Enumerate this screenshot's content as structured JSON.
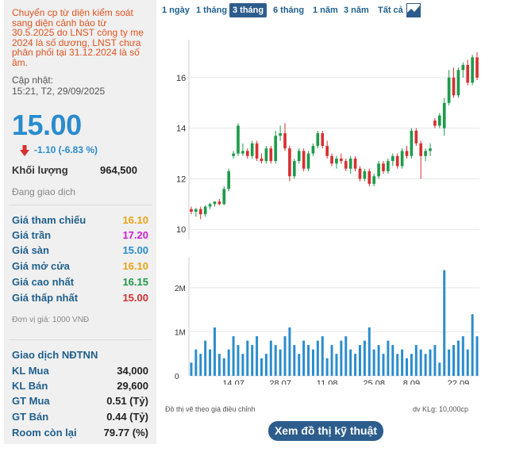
{
  "notice": "Chuyển cp từ diện kiểm soát sang diện cảnh báo từ 30.5.2025 do LNST công ty mẹ 2024 là số dương, LNST chưa phân phối tại 31.12.2024 là số âm.",
  "updated_label": "Cập nhật:",
  "updated_time": "15:21, T2, 29/09/2025",
  "price": "15.00",
  "change": "-1.10 (-6.83 %)",
  "volume_label": "Khối lượng",
  "volume_value": "964,500",
  "trading_status": "Đang giao dịch",
  "colors": {
    "accent": "#2a8ccd",
    "navy": "#2d5d8c",
    "up": "#1e9a4b",
    "down": "#d63031",
    "notice": "#e05320",
    "reference": "#e8a317",
    "ceiling": "#d11fd1",
    "floor": "#2a8ccd",
    "volume": "#2a8ccd"
  },
  "prices": [
    {
      "label": "Giá tham chiếu",
      "value": "16.10",
      "color": "#e8a317"
    },
    {
      "label": "Giá trần",
      "value": "17.20",
      "color": "#d11fd1"
    },
    {
      "label": "Giá sàn",
      "value": "15.00",
      "color": "#2a8ccd"
    },
    {
      "label": "Giá mở cửa",
      "value": "16.10",
      "color": "#e8a317"
    },
    {
      "label": "Giá cao nhất",
      "value": "16.15",
      "color": "#1e9a4b"
    },
    {
      "label": "Giá thấp nhất",
      "value": "15.00",
      "color": "#d63031"
    }
  ],
  "unit_note": "Đơn vị giá: 1000 VNĐ",
  "foreign": {
    "title": "Giao dịch NĐTNN",
    "rows": [
      {
        "label": "KL Mua",
        "value": "34,000"
      },
      {
        "label": "KL Bán",
        "value": "29,600"
      },
      {
        "label": "GT Mua",
        "value": "0.51 (Tỷ)"
      },
      {
        "label": "GT Bán",
        "value": "0.44 (Tỷ)"
      },
      {
        "label": "Room còn lại",
        "value": "79.77 (%)"
      }
    ]
  },
  "range_tabs": [
    "1 ngày",
    "1 tháng",
    "3 tháng",
    "6 tháng",
    "1 năm",
    "3 năm",
    "Tất cả"
  ],
  "active_range": "3 tháng",
  "chart_icon": "line-chart-icon",
  "chart_note": "Đồ thị vẽ theo giá điều chỉnh",
  "volume_unit": "dv KLg: 10,000cp",
  "tech_button": "Xem đồ thị kỹ thuật",
  "chart_data": [
    {
      "type": "candlestick",
      "ylim": [
        9.6,
        17.5
      ],
      "yticks": [
        10,
        12,
        14,
        16
      ],
      "x_labels": [
        "14.07",
        "28.07",
        "11.08",
        "25.08",
        "8.09",
        "22.09"
      ],
      "x_label_index": [
        9,
        19,
        29,
        39,
        47,
        57
      ],
      "candles": [
        {
          "o": 10.8,
          "h": 10.9,
          "l": 10.6,
          "c": 10.7
        },
        {
          "o": 10.7,
          "h": 10.85,
          "l": 10.5,
          "c": 10.8
        },
        {
          "o": 10.8,
          "h": 10.9,
          "l": 10.4,
          "c": 10.6
        },
        {
          "o": 10.6,
          "h": 10.95,
          "l": 10.5,
          "c": 10.9
        },
        {
          "o": 10.9,
          "h": 11.05,
          "l": 10.8,
          "c": 11.0
        },
        {
          "o": 11.0,
          "h": 11.1,
          "l": 10.9,
          "c": 11.1
        },
        {
          "o": 11.1,
          "h": 11.2,
          "l": 10.95,
          "c": 11.0
        },
        {
          "o": 11.0,
          "h": 11.7,
          "l": 10.95,
          "c": 11.6
        },
        {
          "o": 11.6,
          "h": 12.4,
          "l": 11.5,
          "c": 12.3
        },
        {
          "o": 12.9,
          "h": 13.1,
          "l": 12.8,
          "c": 13.0
        },
        {
          "o": 13.0,
          "h": 14.2,
          "l": 12.9,
          "c": 14.1
        },
        {
          "o": 13.0,
          "h": 13.4,
          "l": 12.9,
          "c": 13.1
        },
        {
          "o": 13.1,
          "h": 13.2,
          "l": 12.8,
          "c": 12.9
        },
        {
          "o": 12.9,
          "h": 13.5,
          "l": 12.8,
          "c": 13.4
        },
        {
          "o": 13.4,
          "h": 13.5,
          "l": 12.7,
          "c": 12.8
        },
        {
          "o": 12.8,
          "h": 13.0,
          "l": 12.6,
          "c": 12.7
        },
        {
          "o": 12.7,
          "h": 13.3,
          "l": 12.6,
          "c": 13.2
        },
        {
          "o": 13.2,
          "h": 13.3,
          "l": 12.6,
          "c": 12.7
        },
        {
          "o": 12.7,
          "h": 13.9,
          "l": 12.6,
          "c": 13.7
        },
        {
          "o": 13.7,
          "h": 14.1,
          "l": 13.5,
          "c": 13.8
        },
        {
          "o": 13.8,
          "h": 14.2,
          "l": 13.1,
          "c": 13.2
        },
        {
          "o": 13.2,
          "h": 13.3,
          "l": 11.9,
          "c": 12.1
        },
        {
          "o": 12.1,
          "h": 12.8,
          "l": 12.0,
          "c": 12.7
        },
        {
          "o": 12.7,
          "h": 13.2,
          "l": 12.6,
          "c": 13.1
        },
        {
          "o": 13.1,
          "h": 13.2,
          "l": 12.3,
          "c": 12.4
        },
        {
          "o": 12.4,
          "h": 13.1,
          "l": 12.3,
          "c": 13.0
        },
        {
          "o": 13.0,
          "h": 13.4,
          "l": 12.9,
          "c": 13.3
        },
        {
          "o": 13.3,
          "h": 13.9,
          "l": 13.2,
          "c": 13.8
        },
        {
          "o": 13.8,
          "h": 13.9,
          "l": 13.2,
          "c": 13.3
        },
        {
          "o": 13.3,
          "h": 13.5,
          "l": 12.8,
          "c": 12.9
        },
        {
          "o": 12.9,
          "h": 13.0,
          "l": 12.5,
          "c": 12.6
        },
        {
          "o": 12.6,
          "h": 12.9,
          "l": 12.4,
          "c": 12.8
        },
        {
          "o": 12.8,
          "h": 13.0,
          "l": 12.6,
          "c": 12.7
        },
        {
          "o": 12.7,
          "h": 12.8,
          "l": 12.3,
          "c": 12.4
        },
        {
          "o": 12.4,
          "h": 12.9,
          "l": 12.2,
          "c": 12.8
        },
        {
          "o": 12.8,
          "h": 12.9,
          "l": 12.3,
          "c": 12.4
        },
        {
          "o": 12.4,
          "h": 12.5,
          "l": 11.9,
          "c": 12.0
        },
        {
          "o": 12.0,
          "h": 12.4,
          "l": 11.9,
          "c": 12.3
        },
        {
          "o": 12.3,
          "h": 12.4,
          "l": 11.7,
          "c": 11.8
        },
        {
          "o": 11.8,
          "h": 12.2,
          "l": 11.7,
          "c": 12.1
        },
        {
          "o": 12.1,
          "h": 12.7,
          "l": 12.0,
          "c": 12.6
        },
        {
          "o": 12.6,
          "h": 12.7,
          "l": 12.2,
          "c": 12.3
        },
        {
          "o": 12.3,
          "h": 12.8,
          "l": 12.2,
          "c": 12.7
        },
        {
          "o": 12.7,
          "h": 13.0,
          "l": 12.5,
          "c": 12.9
        },
        {
          "o": 12.9,
          "h": 13.0,
          "l": 12.4,
          "c": 12.5
        },
        {
          "o": 12.5,
          "h": 13.2,
          "l": 12.4,
          "c": 13.1
        },
        {
          "o": 13.1,
          "h": 13.3,
          "l": 12.8,
          "c": 12.9
        },
        {
          "o": 12.9,
          "h": 14.0,
          "l": 12.8,
          "c": 13.9
        },
        {
          "o": 13.9,
          "h": 14.0,
          "l": 13.3,
          "c": 13.4
        },
        {
          "o": 13.4,
          "h": 13.5,
          "l": 12.0,
          "c": 12.9
        },
        {
          "o": 12.9,
          "h": 13.2,
          "l": 12.7,
          "c": 13.1
        },
        {
          "o": 13.1,
          "h": 13.4,
          "l": 12.9,
          "c": 13.2
        },
        {
          "o": 14.3,
          "h": 14.4,
          "l": 14.0,
          "c": 14.1
        },
        {
          "o": 14.1,
          "h": 14.6,
          "l": 14.0,
          "c": 14.5
        },
        {
          "o": 14.0,
          "h": 15.2,
          "l": 13.7,
          "c": 15.0
        },
        {
          "o": 15.0,
          "h": 16.3,
          "l": 14.9,
          "c": 16.0
        },
        {
          "o": 16.0,
          "h": 16.4,
          "l": 15.2,
          "c": 15.3
        },
        {
          "o": 15.3,
          "h": 16.4,
          "l": 15.2,
          "c": 16.3
        },
        {
          "o": 16.3,
          "h": 16.6,
          "l": 16.0,
          "c": 16.5
        },
        {
          "o": 16.5,
          "h": 16.7,
          "l": 15.7,
          "c": 15.8
        },
        {
          "o": 15.8,
          "h": 16.9,
          "l": 15.7,
          "c": 16.8
        },
        {
          "o": 16.8,
          "h": 17.0,
          "l": 15.9,
          "c": 16.0
        }
      ]
    },
    {
      "type": "bar",
      "yticks_labels": [
        "0",
        "1M",
        "2M"
      ],
      "yticks": [
        0,
        1000000,
        2000000
      ],
      "ylim": [
        0,
        2700000
      ],
      "values": [
        300000,
        600000,
        500000,
        800000,
        600000,
        1100000,
        500000,
        400000,
        600000,
        900000,
        700000,
        500000,
        800000,
        700000,
        900000,
        400000,
        500000,
        800000,
        700000,
        600000,
        900000,
        1100000,
        700000,
        500000,
        800000,
        700000,
        600000,
        800000,
        900000,
        400000,
        700000,
        500000,
        800000,
        900000,
        600000,
        500000,
        700000,
        800000,
        1100000,
        600000,
        700000,
        500000,
        800000,
        700000,
        500000,
        600000,
        400000,
        500000,
        700000,
        600000,
        500000,
        600000,
        700000,
        300000,
        2400000,
        600000,
        700000,
        800000,
        900000,
        600000,
        1400000,
        900000
      ]
    }
  ]
}
